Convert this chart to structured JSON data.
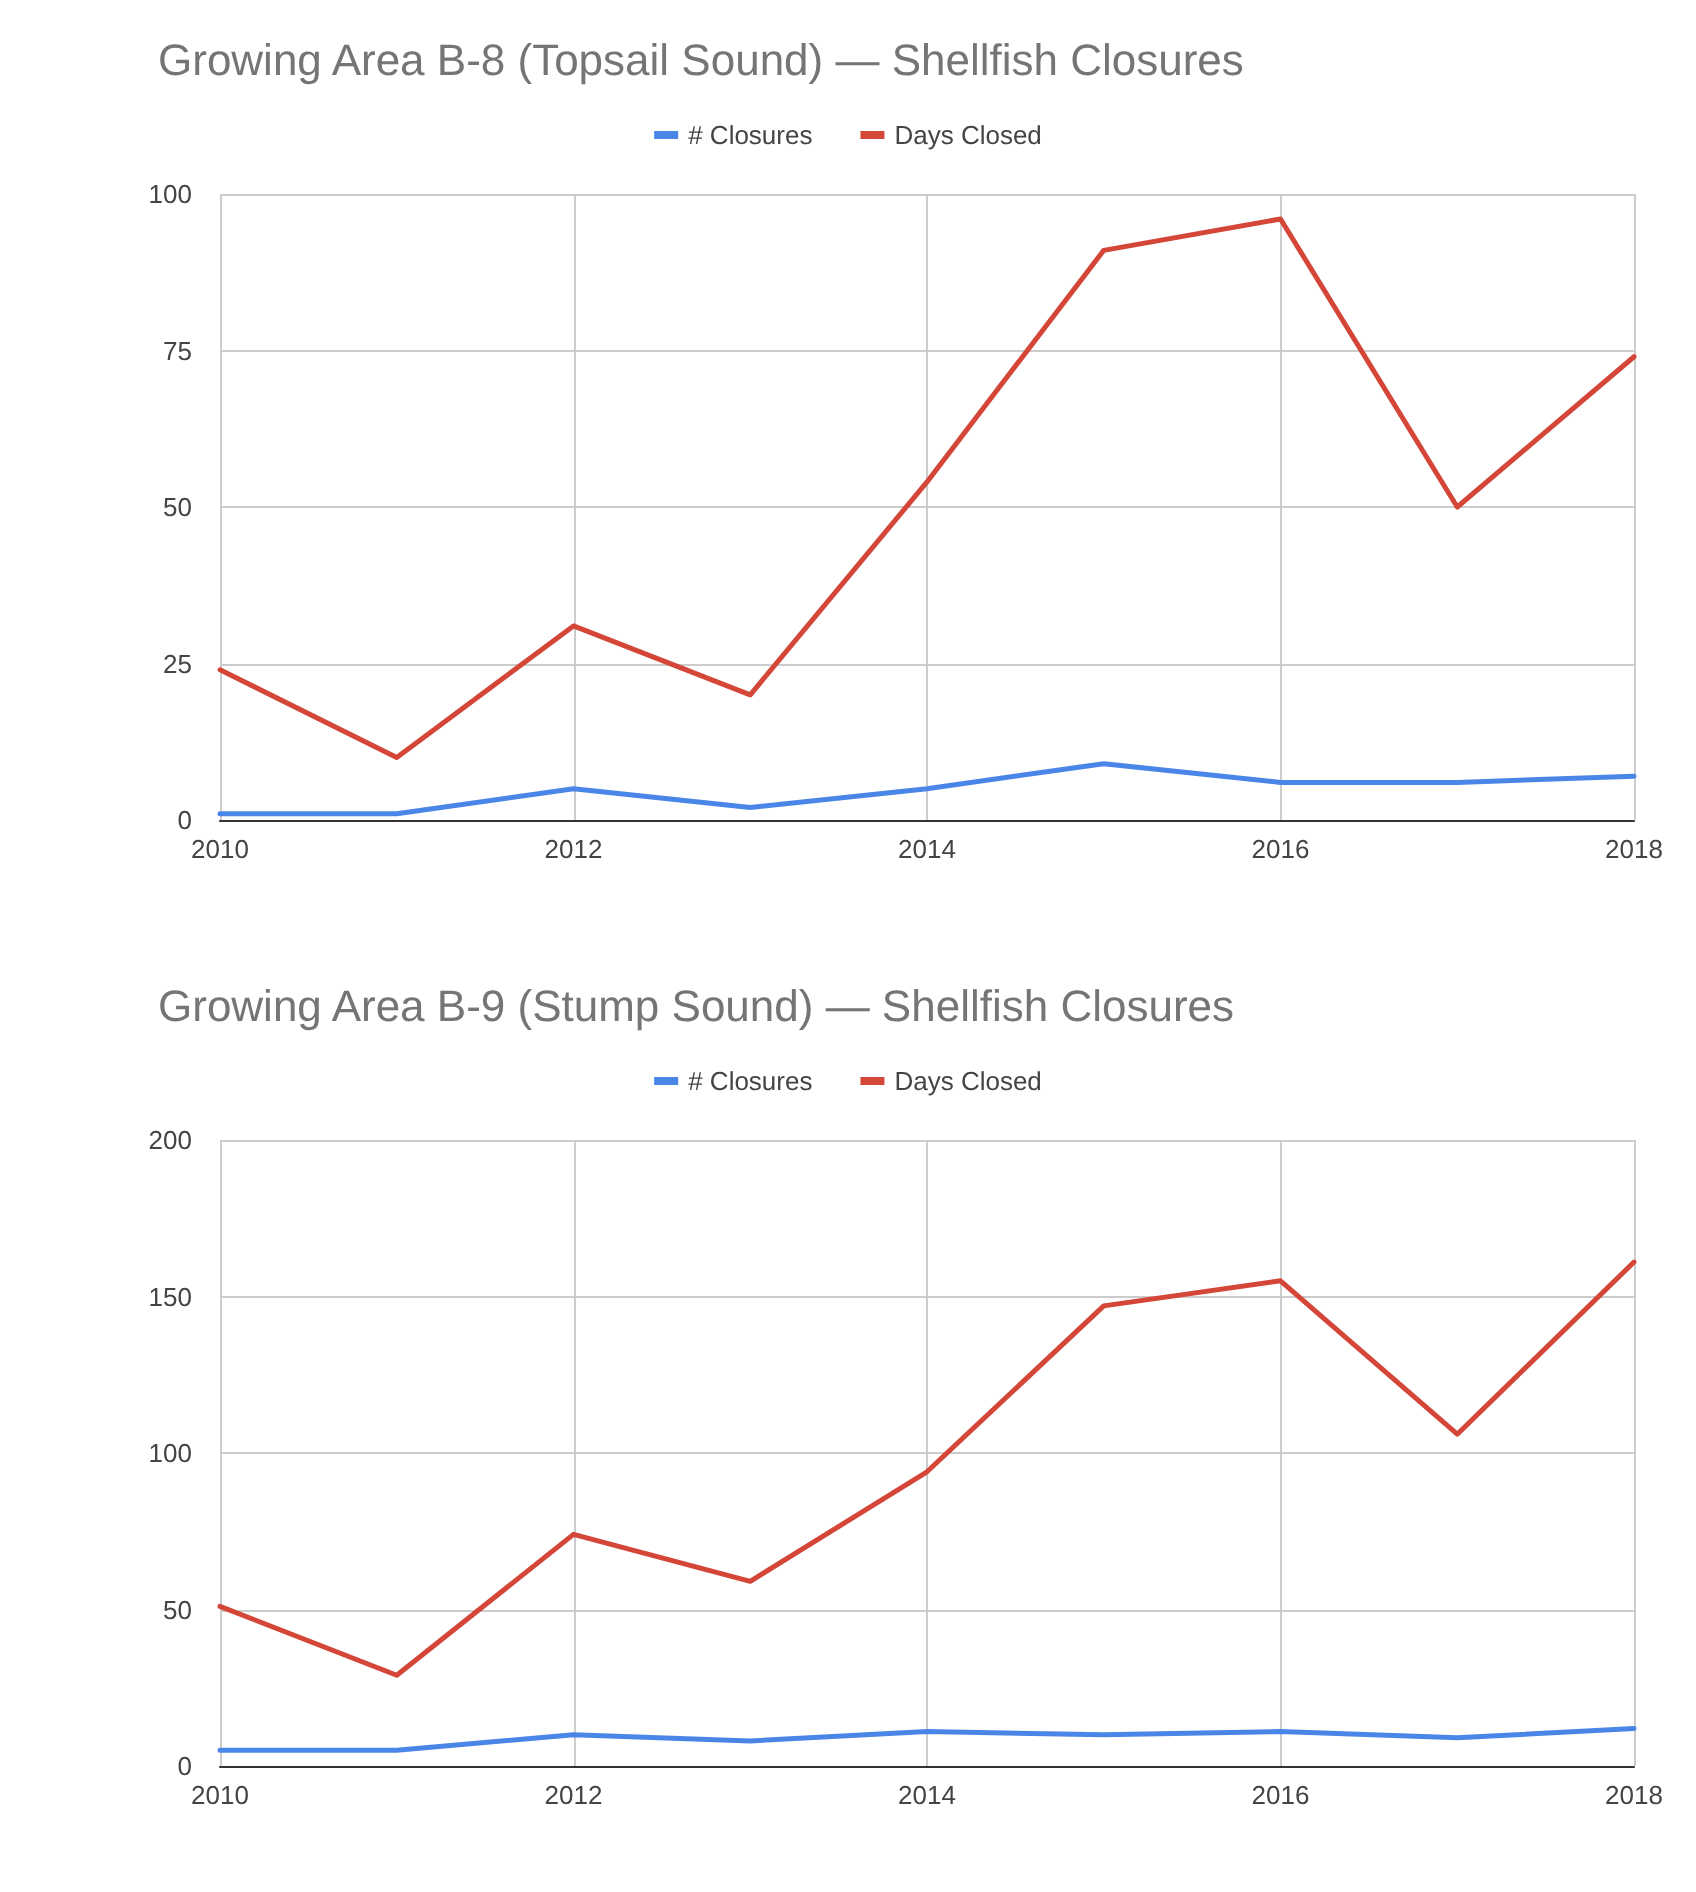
{
  "chart_data": [
    {
      "type": "line",
      "title": "Growing Area B-8 (Topsail Sound) — Shellfish Closures",
      "x": [
        2010,
        2011,
        2012,
        2013,
        2014,
        2015,
        2016,
        2017,
        2018
      ],
      "xlim": [
        2010,
        2018
      ],
      "xticks": [
        2010,
        2012,
        2014,
        2016,
        2018
      ],
      "ylim": [
        0,
        100
      ],
      "yticks": [
        0,
        25,
        50,
        75,
        100
      ],
      "grid": true,
      "legend": "top",
      "series": [
        {
          "name": "# Closures",
          "color": "#4a86e8",
          "values": [
            1,
            1,
            5,
            2,
            5,
            9,
            6,
            6,
            7
          ]
        },
        {
          "name": "Days Closed",
          "color": "#d44638",
          "values": [
            24,
            10,
            31,
            20,
            54,
            91,
            96,
            50,
            74
          ]
        }
      ]
    },
    {
      "type": "line",
      "title": "Growing Area B-9 (Stump Sound) — Shellfish Closures",
      "x": [
        2010,
        2011,
        2012,
        2013,
        2014,
        2015,
        2016,
        2017,
        2018
      ],
      "xlim": [
        2010,
        2018
      ],
      "xticks": [
        2010,
        2012,
        2014,
        2016,
        2018
      ],
      "ylim": [
        0,
        200
      ],
      "yticks": [
        0,
        50,
        100,
        150,
        200
      ],
      "grid": true,
      "legend": "top",
      "series": [
        {
          "name": "# Closures",
          "color": "#4a86e8",
          "values": [
            5,
            5,
            10,
            8,
            11,
            10,
            11,
            9,
            12
          ]
        },
        {
          "name": "Days Closed",
          "color": "#d44638",
          "values": [
            51,
            29,
            74,
            59,
            94,
            147,
            155,
            106,
            161
          ]
        }
      ]
    }
  ]
}
